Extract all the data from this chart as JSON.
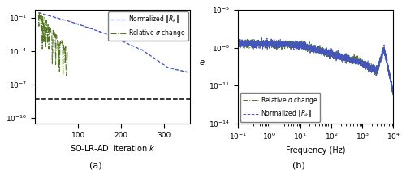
{
  "panel_a": {
    "title": "(a)",
    "xlabel": "SO-LR-ADI iteration $k$",
    "xlim": [
      0,
      360
    ],
    "yticks": [
      1e-10,
      1e-07,
      0.0001,
      0.1
    ],
    "xticks": [
      100,
      200,
      300
    ],
    "tolerance_line": 5e-09,
    "blue_line_color": "#4455bb",
    "green_line_color": "#557722",
    "black_dash_color": "#000000",
    "legend_labels": [
      "Normalized $\\|R_k\\|$",
      "Relative $\\sigma$ change"
    ]
  },
  "panel_b": {
    "title": "(b)",
    "xlabel": "Frequency (Hz)",
    "ylabel": "$e$",
    "ylim": [
      1e-14,
      1e-05
    ],
    "yticks": [
      1e-14,
      1e-11,
      1e-08,
      1e-05
    ],
    "blue_line_color": "#4455bb",
    "green_line_color": "#557722",
    "legend_labels": [
      "Normalized $\\|R_k\\|$",
      "Relative $\\sigma$ change"
    ]
  }
}
